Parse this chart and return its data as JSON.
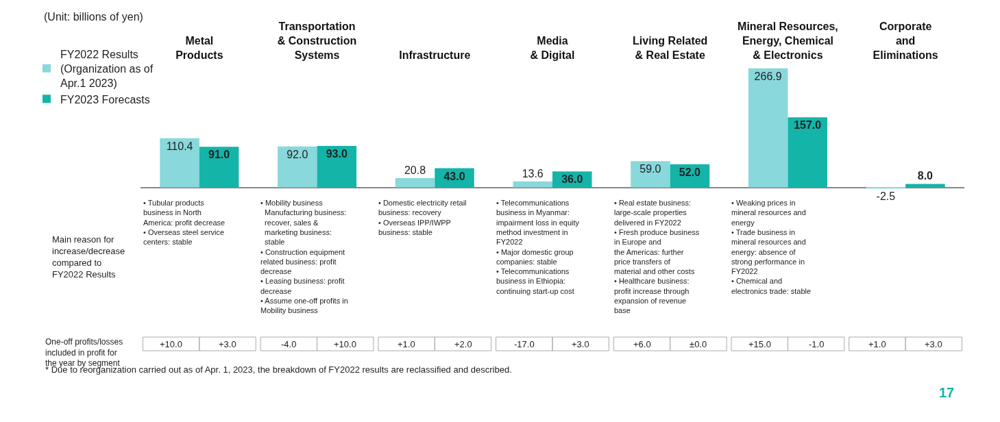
{
  "chart_data": {
    "type": "bar",
    "categories": [
      "Metal\nProducts",
      "Transportation\n& Construction\nSystems",
      "Infrastructure",
      "Media\n& Digital",
      "Living Related\n& Real Estate",
      "Mineral Resources,\nEnergy, Chemical\n& Electronics",
      "Corporate\nand\nEliminations"
    ],
    "series": [
      {
        "name": "FY2022 Results\n(Organization as of\nApr.1 2023)",
        "color": "#88d8dc",
        "values": [
          110.4,
          92.0,
          20.8,
          13.6,
          59.0,
          266.9,
          -2.5
        ],
        "value_labels": [
          "110.4",
          "92.0",
          "20.8",
          "13.6",
          "59.0",
          "266.9",
          "-2.5"
        ]
      },
      {
        "name": "FY2023 Forecasts",
        "color": "#14b4a8",
        "values": [
          91.0,
          93.0,
          43.0,
          36.0,
          52.0,
          157.0,
          8.0
        ],
        "value_labels": [
          "91.0",
          "93.0",
          "43.0",
          "36.0",
          "52.0",
          "157.0",
          "8.0"
        ]
      }
    ],
    "legend": "top left",
    "annotations": [
      "(Unit: billions of yen)",
      "Main reason for\nincrease/decrease\ncompared to\nFY2022 Results",
      "• Tubular products\nbusiness in North\nAmerica: profit decrease\n• Overseas steel service\ncenters: stable",
      "• Mobility business\n  Manufacturing business:\n  recover, sales &\n  marketing business:\n  stable\n• Construction equipment\nrelated business: profit\ndecrease\n• Leasing business: profit\ndecrease\n• Assume one-off profits in\nMobility business",
      "• Domestic electricity retail\nbusiness: recovery\n• Overseas IPP/IWPP\nbusiness: stable",
      "• Telecommunications\nbusiness in Myanmar:\nimpairment loss in equity\nmethod investment in\nFY2022\n• Major domestic group\ncompanies: stable\n• Telecommunications\nbusiness in Ethiopia:\ncontinuing start-up cost",
      "• Real estate business:\nlarge-scale properties\ndelivered in FY2022\n• Fresh produce business\nin Europe and\nthe Americas: further\nprice transfers of\nmaterial and other costs\n• Healthcare business:\nprofit increase through\nexpansion of revenue\nbase",
      "• Weaking prices in\nmineral resources and\nenergy\n• Trade business in\nmineral resources and\nenergy: absence of\nstrong performance in\nFY2022\n• Chemical and\nelectronics trade: stable",
      "One-off profits/losses\nincluded in profit for\nthe year by segment",
      "+10.0",
      "+3.0",
      "-4.0",
      "+10.0",
      "+1.0",
      "+2.0",
      "-17.0",
      "+3.0",
      "+6.0",
      "±0.0",
      "+15.0",
      "-1.0",
      "+1.0",
      "+3.0",
      "* Due to reorganization carried out as of Apr. 1, 2023, the breakdown of FY2022 results are reclassified and described.",
      "17"
    ]
  }
}
